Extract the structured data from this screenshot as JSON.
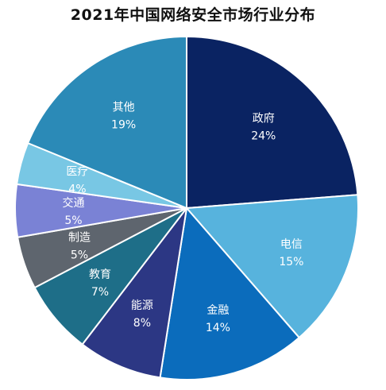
{
  "chart_data": {
    "type": "pie",
    "title": "2021年中国网络安全市场行业分布",
    "start_angle_deg": 0,
    "direction": "clockwise",
    "slices": [
      {
        "label": "政府",
        "value": 24,
        "value_label": "24%",
        "color": "#0a2362"
      },
      {
        "label": "电信",
        "value": 15,
        "value_label": "15%",
        "color": "#57b3dd"
      },
      {
        "label": "金融",
        "value": 14,
        "value_label": "14%",
        "color": "#0b6cbc"
      },
      {
        "label": "能源",
        "value": 8,
        "value_label": "8%",
        "color": "#2c3784"
      },
      {
        "label": "教育",
        "value": 7,
        "value_label": "7%",
        "color": "#1e6e88"
      },
      {
        "label": "制造",
        "value": 5,
        "value_label": "5%",
        "color": "#5e656e"
      },
      {
        "label": "交通",
        "value": 5,
        "value_label": "5%",
        "color": "#7a82d5"
      },
      {
        "label": "医疗",
        "value": 4,
        "value_label": "4%",
        "color": "#78c7e4"
      },
      {
        "label": "其他",
        "value": 19,
        "value_label": "19%",
        "color": "#2b8ab7"
      }
    ]
  }
}
